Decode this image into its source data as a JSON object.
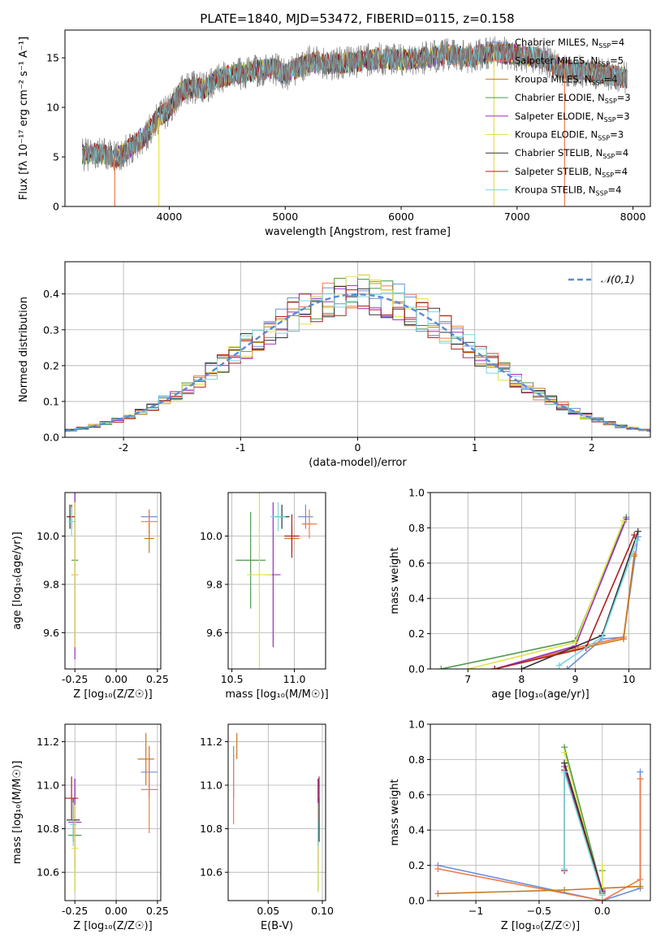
{
  "page_title": "PLATE=1840, MJD=53472, FIBERID=0115, z=0.158",
  "series_styles": [
    {
      "name": "Chabrier MILES, N$_{SSP}$=4",
      "color": "#6a8fdc"
    },
    {
      "name": "Salpeter MILES, N$_{SSP}$=5",
      "color": "#f07a4a"
    },
    {
      "name": "Kroupa MILES, N$_{SSP}$=4",
      "color": "#c87a1a"
    },
    {
      "name": "Chabrier ELODIE, N$_{SSP}$=3",
      "color": "#4d9a4d"
    },
    {
      "name": "Salpeter ELODIE, N$_{SSP}$=3",
      "color": "#9b30c0"
    },
    {
      "name": "Kroupa ELODIE, N$_{SSP}$=3",
      "color": "#e0e24a"
    },
    {
      "name": "Chabrier STELIB, N$_{SSP}$=4",
      "color": "#333333"
    },
    {
      "name": "Salpeter STELIB, N$_{SSP}$=4",
      "color": "#b01e1e"
    },
    {
      "name": "Kroupa STELIB, N$_{SSP}$=4",
      "color": "#78d7e0"
    }
  ],
  "legend_labels": [
    "Chabrier MILES, N",
    "Salpeter MILES, N",
    "Kroupa MILES, N",
    "Chabrier ELODIE, N",
    "Salpeter ELODIE, N",
    "Kroupa ELODIE, N",
    "Chabrier STELIB, N",
    "Salpeter STELIB, N",
    "Kroupa STELIB, N"
  ],
  "legend_suffixes": [
    "=4",
    "=5",
    "=4",
    "=3",
    "=3",
    "=3",
    "=4",
    "=4",
    "=4"
  ],
  "chart_data": [
    {
      "id": "spectrum",
      "type": "line",
      "xlabel": "wavelength [Angstrom, rest frame]",
      "ylabel": "Flux [f_λ 10^-17 erg cm^-2 s^-1 A^-1]",
      "xlim": [
        3100,
        8150
      ],
      "ylim": [
        0,
        17.8
      ],
      "xticks": [
        4000,
        5000,
        6000,
        7000,
        8000
      ],
      "yticks": [
        0,
        5,
        10,
        15
      ],
      "grid": false,
      "legend": "upper-right",
      "observed_color": "#808080",
      "continuum": [
        [
          3250,
          5.2
        ],
        [
          3400,
          5.4
        ],
        [
          3550,
          4.9
        ],
        [
          3700,
          6.3
        ],
        [
          3800,
          7.2
        ],
        [
          3900,
          8.9
        ],
        [
          4000,
          9.8
        ],
        [
          4100,
          11.6
        ],
        [
          4200,
          12.0
        ],
        [
          4300,
          11.9
        ],
        [
          4400,
          12.8
        ],
        [
          4500,
          13.2
        ],
        [
          4700,
          13.6
        ],
        [
          4900,
          14.0
        ],
        [
          5000,
          13.3
        ],
        [
          5200,
          14.6
        ],
        [
          5400,
          14.4
        ],
        [
          5600,
          14.6
        ],
        [
          5800,
          14.9
        ],
        [
          6000,
          14.8
        ],
        [
          6200,
          15.0
        ],
        [
          6400,
          15.3
        ],
        [
          6600,
          15.1
        ],
        [
          6800,
          15.6
        ],
        [
          7000,
          15.3
        ],
        [
          7200,
          15.0
        ],
        [
          7400,
          13.8
        ],
        [
          7600,
          13.6
        ],
        [
          7800,
          13.3
        ],
        [
          7950,
          12.9
        ]
      ]
    },
    {
      "id": "residuals",
      "type": "step",
      "xlabel": "(data-model)/error",
      "ylabel": "Normed distribution",
      "xlim": [
        -2.5,
        2.5
      ],
      "ylim": [
        0,
        0.49
      ],
      "xticks": [
        -2,
        -1,
        0,
        1,
        2
      ],
      "yticks": [
        0.0,
        0.1,
        0.2,
        0.3,
        0.4
      ],
      "grid": true,
      "legend": "upper-right",
      "reference": {
        "label": "𝒩(0,1)",
        "mean": 0,
        "sigma": 1
      }
    },
    {
      "id": "age-vs-Z",
      "type": "errorbar",
      "xlabel": "Z [log10(Z/Z☉)]",
      "ylabel": "age [log10(age/yr)]",
      "xlim": [
        -0.31,
        0.27
      ],
      "ylim": [
        9.45,
        10.18
      ],
      "xticks": [
        -0.25,
        0.0,
        0.25
      ],
      "yticks": [
        9.6,
        9.8,
        10.0
      ],
      "grid": true,
      "points": [
        {
          "x": 0.2,
          "xerr": 0.05,
          "y": 10.08,
          "yerr": 0.03
        },
        {
          "x": 0.2,
          "xerr": 0.05,
          "y": 10.06,
          "yerr": 0.05
        },
        {
          "x": 0.2,
          "xerr": 0.03,
          "y": 9.99,
          "yerr": 0.06
        },
        {
          "x": -0.25,
          "xerr": 0.02,
          "y": 9.9,
          "yerr": 0.35
        },
        {
          "x": -0.25,
          "xerr": 0.02,
          "y": 9.84,
          "yerr": 0.35
        },
        {
          "x": -0.25,
          "xerr": 0.02,
          "y": 9.84,
          "yerr": 0.3
        },
        {
          "x": -0.28,
          "xerr": 0.02,
          "y": 10.08,
          "yerr": 0.05
        },
        {
          "x": -0.27,
          "xerr": 0.02,
          "y": 10.08,
          "yerr": 0.05
        },
        {
          "x": -0.27,
          "xerr": 0.02,
          "y": 10.06,
          "yerr": 0.06
        }
      ]
    },
    {
      "id": "age-vs-mass",
      "type": "errorbar",
      "xlabel": "mass [log10(M/M☉)]",
      "ylabel": "",
      "xlim": [
        10.47,
        11.25
      ],
      "ylim": [
        9.45,
        10.18
      ],
      "xticks": [
        10.5,
        11.0
      ],
      "yticks": [
        9.6,
        9.8,
        10.0
      ],
      "grid": true,
      "points": [
        {
          "x": 11.09,
          "xerr": 0.06,
          "y": 10.08,
          "yerr": 0.05
        },
        {
          "x": 11.12,
          "xerr": 0.06,
          "y": 10.05,
          "yerr": 0.06
        },
        {
          "x": 10.98,
          "xerr": 0.06,
          "y": 9.99,
          "yerr": 0.06
        },
        {
          "x": 10.65,
          "xerr": 0.12,
          "y": 9.9,
          "yerr": 0.2
        },
        {
          "x": 10.83,
          "xerr": 0.06,
          "y": 9.84,
          "yerr": 0.3
        },
        {
          "x": 10.72,
          "xerr": 0.1,
          "y": 9.84,
          "yerr": 0.4
        },
        {
          "x": 10.9,
          "xerr": 0.06,
          "y": 10.08,
          "yerr": 0.05
        },
        {
          "x": 10.98,
          "xerr": 0.06,
          "y": 10.0,
          "yerr": 0.09
        },
        {
          "x": 10.87,
          "xerr": 0.06,
          "y": 10.08,
          "yerr": 0.06
        }
      ]
    },
    {
      "id": "mass-weight-vs-age",
      "type": "line",
      "xlabel": "age [log10(age/yr)]",
      "ylabel": "mass weight",
      "xlim": [
        6.3,
        10.4
      ],
      "ylim": [
        0,
        1.0
      ],
      "xticks": [
        7,
        8,
        9,
        10
      ],
      "yticks": [
        0.0,
        0.2,
        0.4,
        0.6,
        0.8,
        1.0
      ],
      "grid": true,
      "series": [
        {
          "x": [
            8.85,
            9.5,
            9.9,
            10.17
          ],
          "y": [
            0.0,
            0.17,
            0.18,
            0.75
          ]
        },
        {
          "x": [
            7.5,
            9.0,
            9.9,
            10.1
          ],
          "y": [
            0.0,
            0.12,
            0.18,
            0.65
          ]
        },
        {
          "x": [
            7.5,
            9.0,
            9.9,
            10.1
          ],
          "y": [
            0.0,
            0.11,
            0.17,
            0.64
          ]
        },
        {
          "x": [
            6.5,
            9.0,
            9.95
          ],
          "y": [
            0.0,
            0.16,
            0.86
          ]
        },
        {
          "x": [
            7.5,
            9.0,
            9.95
          ],
          "y": [
            0.0,
            0.13,
            0.85
          ]
        },
        {
          "x": [
            7.0,
            9.0,
            9.9
          ],
          "y": [
            0.0,
            0.15,
            0.84
          ]
        },
        {
          "x": [
            8.0,
            9.5,
            10.17
          ],
          "y": [
            0.0,
            0.19,
            0.78
          ]
        },
        {
          "x": [
            7.5,
            9.2,
            10.1
          ],
          "y": [
            0.0,
            0.12,
            0.76
          ]
        },
        {
          "x": [
            8.7,
            9.5,
            10.15
          ],
          "y": [
            0.02,
            0.18,
            0.73
          ]
        }
      ]
    },
    {
      "id": "mass-vs-Z",
      "type": "errorbar",
      "xlabel": "Z [log10(Z/Z☉)]",
      "ylabel": "mass [log10(M/M☉)]",
      "xlim": [
        -0.31,
        0.27
      ],
      "ylim": [
        10.47,
        11.28
      ],
      "xticks": [
        -0.25,
        0.0,
        0.25
      ],
      "yticks": [
        10.6,
        10.8,
        11.0,
        11.2
      ],
      "grid": true,
      "points": [
        {
          "x": 0.2,
          "xerr": 0.05,
          "y": 11.06,
          "yerr": 0.12
        },
        {
          "x": 0.2,
          "xerr": 0.05,
          "y": 10.98,
          "yerr": 0.2
        },
        {
          "x": 0.18,
          "xerr": 0.05,
          "y": 11.12,
          "yerr": 0.12
        },
        {
          "x": -0.25,
          "xerr": 0.04,
          "y": 10.77,
          "yerr": 0.26
        },
        {
          "x": -0.25,
          "xerr": 0.04,
          "y": 10.83,
          "yerr": 0.2
        },
        {
          "x": -0.25,
          "xerr": 0.02,
          "y": 10.71,
          "yerr": 0.2
        },
        {
          "x": -0.26,
          "xerr": 0.04,
          "y": 10.84,
          "yerr": 0.1
        },
        {
          "x": -0.27,
          "xerr": 0.04,
          "y": 10.94,
          "yerr": 0.1
        },
        {
          "x": -0.26,
          "xerr": 0.02,
          "y": 10.82,
          "yerr": 0.1
        }
      ]
    },
    {
      "id": "mass-vs-EBV",
      "type": "errorbar",
      "xlabel": "E(B-V)",
      "ylabel": "",
      "xlim": [
        0.013,
        0.103
      ],
      "ylim": [
        10.47,
        11.28
      ],
      "xticks": [
        0.05,
        0.1
      ],
      "yticks": [
        10.6,
        10.8,
        11.0,
        11.2
      ],
      "grid": true,
      "points": [
        {
          "x": 0.018,
          "xerr": 0.0,
          "y": 11.06,
          "yerr": 0.12
        },
        {
          "x": 0.018,
          "xerr": 0.0,
          "y": 10.98,
          "yerr": 0.16
        },
        {
          "x": 0.021,
          "xerr": 0.0,
          "y": 11.18,
          "yerr": 0.06
        },
        {
          "x": 0.096,
          "xerr": 0.0,
          "y": 10.77,
          "yerr": 0.26
        },
        {
          "x": 0.096,
          "xerr": 0.0,
          "y": 10.83,
          "yerr": 0.2
        },
        {
          "x": 0.096,
          "xerr": 0.0,
          "y": 10.71,
          "yerr": 0.2
        },
        {
          "x": 0.097,
          "xerr": 0.0,
          "y": 10.84,
          "yerr": 0.1
        },
        {
          "x": 0.097,
          "xerr": 0.0,
          "y": 10.94,
          "yerr": 0.1
        },
        {
          "x": 0.096,
          "xerr": 0.0,
          "y": 10.82,
          "yerr": 0.1
        }
      ]
    },
    {
      "id": "mass-weight-vs-Z",
      "type": "line",
      "xlabel": "Z [log10(Z/Z☉)]",
      "ylabel": "mass weight",
      "xlim": [
        -1.36,
        0.38
      ],
      "ylim": [
        0,
        1.0
      ],
      "xticks": [
        -1.0,
        -0.5,
        0.0
      ],
      "yticks": [
        0.0,
        0.2,
        0.4,
        0.6,
        0.8,
        1.0
      ],
      "grid": true,
      "series": [
        {
          "x": [
            -1.3,
            0.0,
            0.3,
            0.3
          ],
          "y": [
            0.2,
            0.0,
            0.07,
            0.73
          ]
        },
        {
          "x": [
            -1.3,
            0.0,
            0.3,
            0.3
          ],
          "y": [
            0.18,
            0.0,
            0.12,
            0.69
          ]
        },
        {
          "x": [
            -1.3,
            -0.3,
            0.3
          ],
          "y": [
            0.04,
            0.06,
            0.08
          ]
        },
        {
          "x": [
            -0.3,
            0.0,
            0.0
          ],
          "y": [
            0.87,
            0.05,
            0.17
          ]
        },
        {
          "x": [
            -0.3,
            0.0
          ],
          "y": [
            0.76,
            0.06
          ]
        },
        {
          "x": [
            -0.3,
            0.0,
            0.0
          ],
          "y": [
            0.84,
            0.03,
            0.2
          ]
        },
        {
          "x": [
            -0.3,
            0.0
          ],
          "y": [
            0.78,
            0.05
          ]
        },
        {
          "x": [
            -0.3,
            -0.3,
            0.0
          ],
          "y": [
            0.17,
            0.74,
            0.04
          ]
        },
        {
          "x": [
            -0.3,
            -0.3,
            0.0
          ],
          "y": [
            0.18,
            0.73,
            0.03
          ]
        }
      ]
    }
  ]
}
